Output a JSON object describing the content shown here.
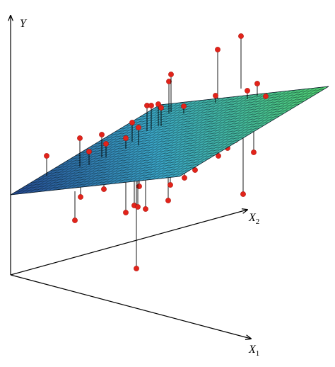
{
  "axes": {
    "y": "Y",
    "x2": {
      "base": "X",
      "sub": "2"
    },
    "x1": {
      "base": "X",
      "sub": "1"
    }
  }
}
